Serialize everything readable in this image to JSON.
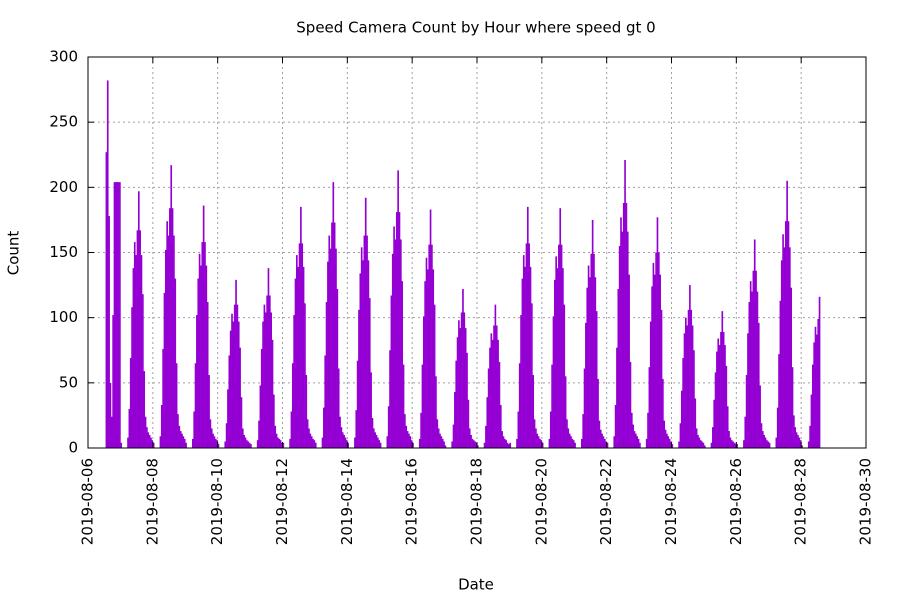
{
  "chart_data": {
    "type": "bar",
    "title": "Speed Camera Count by Hour where speed gt 0",
    "xlabel": "Date",
    "ylabel": "Count",
    "color": "#9400d3",
    "grid": true,
    "xlim": [
      "2019-08-06",
      "2019-08-30"
    ],
    "xticks": [
      "2019-08-06",
      "2019-08-08",
      "2019-08-10",
      "2019-08-12",
      "2019-08-14",
      "2019-08-16",
      "2019-08-18",
      "2019-08-20",
      "2019-08-22",
      "2019-08-24",
      "2019-08-26",
      "2019-08-28",
      "2019-08-30"
    ],
    "ylim": [
      0,
      300
    ],
    "yticks": [
      0,
      50,
      100,
      150,
      200,
      250,
      300
    ],
    "x": [
      "2019-08-06",
      "2019-08-07",
      "2019-08-08",
      "2019-08-09",
      "2019-08-10",
      "2019-08-11",
      "2019-08-12",
      "2019-08-13",
      "2019-08-14",
      "2019-08-15",
      "2019-08-16",
      "2019-08-17",
      "2019-08-18",
      "2019-08-19",
      "2019-08-20",
      "2019-08-21",
      "2019-08-22",
      "2019-08-23",
      "2019-08-24",
      "2019-08-25",
      "2019-08-26",
      "2019-08-27",
      "2019-08-28"
    ],
    "values": [
      [
        null,
        null,
        null,
        null,
        null,
        null,
        null,
        null,
        null,
        null,
        null,
        null,
        null,
        227,
        282,
        178,
        50,
        24,
        102,
        204,
        204,
        204,
        204,
        204
      ],
      [
        4,
        0,
        0,
        0,
        0,
        8,
        30,
        69,
        108,
        138,
        158,
        148,
        167,
        197,
        167,
        148,
        118,
        59,
        24,
        16,
        12,
        10,
        8,
        6
      ],
      [
        4,
        0,
        0,
        0,
        0,
        9,
        33,
        76,
        119,
        152,
        174,
        163,
        184,
        217,
        184,
        163,
        130,
        65,
        26,
        17,
        13,
        11,
        9,
        7
      ],
      [
        4,
        0,
        0,
        0,
        0,
        7,
        28,
        65,
        102,
        130,
        149,
        140,
        158,
        186,
        158,
        140,
        112,
        56,
        22,
        15,
        11,
        9,
        7,
        6
      ],
      [
        3,
        0,
        0,
        0,
        0,
        5,
        19,
        45,
        71,
        90,
        103,
        97,
        110,
        129,
        110,
        97,
        77,
        39,
        15,
        10,
        8,
        6,
        5,
        4
      ],
      [
        3,
        0,
        0,
        0,
        0,
        6,
        21,
        48,
        76,
        97,
        110,
        104,
        117,
        138,
        117,
        104,
        83,
        41,
        17,
        11,
        8,
        7,
        6,
        4
      ],
      [
        4,
        0,
        0,
        0,
        0,
        7,
        28,
        65,
        102,
        130,
        148,
        139,
        157,
        185,
        157,
        139,
        111,
        56,
        22,
        15,
        11,
        9,
        7,
        6
      ],
      [
        4,
        0,
        0,
        0,
        0,
        8,
        31,
        71,
        112,
        143,
        163,
        153,
        173,
        204,
        173,
        153,
        122,
        61,
        24,
        16,
        12,
        10,
        8,
        6
      ],
      [
        4,
        0,
        0,
        0,
        0,
        8,
        29,
        67,
        106,
        134,
        154,
        144,
        163,
        192,
        163,
        144,
        115,
        58,
        23,
        15,
        12,
        10,
        8,
        6
      ],
      [
        4,
        0,
        0,
        0,
        0,
        9,
        32,
        75,
        117,
        149,
        170,
        160,
        181,
        213,
        181,
        160,
        128,
        64,
        26,
        17,
        13,
        11,
        9,
        6
      ],
      [
        4,
        0,
        0,
        0,
        0,
        7,
        27,
        64,
        101,
        128,
        146,
        137,
        156,
        183,
        156,
        137,
        110,
        55,
        22,
        15,
        11,
        9,
        7,
        5
      ],
      [
        2,
        0,
        0,
        0,
        0,
        5,
        18,
        43,
        67,
        85,
        98,
        92,
        104,
        122,
        104,
        92,
        73,
        37,
        15,
        10,
        7,
        6,
        5,
        4
      ],
      [
        2,
        0,
        0,
        0,
        0,
        4,
        17,
        39,
        61,
        77,
        88,
        83,
        94,
        110,
        94,
        83,
        66,
        33,
        13,
        9,
        7,
        6,
        4,
        3
      ],
      [
        4,
        0,
        0,
        0,
        0,
        7,
        28,
        65,
        102,
        130,
        148,
        139,
        157,
        185,
        157,
        139,
        111,
        56,
        22,
        15,
        11,
        9,
        7,
        6
      ],
      [
        4,
        0,
        0,
        0,
        0,
        7,
        28,
        64,
        101,
        129,
        147,
        138,
        156,
        184,
        156,
        138,
        110,
        55,
        22,
        15,
        11,
        9,
        7,
        6
      ],
      [
        4,
        0,
        0,
        0,
        0,
        7,
        26,
        61,
        96,
        123,
        140,
        131,
        149,
        175,
        149,
        131,
        105,
        53,
        21,
        14,
        11,
        9,
        7,
        5
      ],
      [
        4,
        0,
        0,
        0,
        0,
        9,
        33,
        77,
        122,
        155,
        177,
        166,
        188,
        221,
        188,
        166,
        133,
        66,
        27,
        18,
        13,
        11,
        9,
        7
      ],
      [
        4,
        0,
        0,
        0,
        0,
        7,
        27,
        62,
        97,
        124,
        142,
        133,
        150,
        177,
        150,
        133,
        106,
        53,
        21,
        14,
        11,
        9,
        7,
        5
      ],
      [
        3,
        0,
        0,
        0,
        0,
        5,
        19,
        44,
        69,
        88,
        100,
        94,
        106,
        125,
        106,
        94,
        75,
        38,
        15,
        10,
        8,
        6,
        5,
        4
      ],
      [
        2,
        0,
        0,
        0,
        0,
        4,
        16,
        37,
        58,
        74,
        84,
        79,
        89,
        105,
        89,
        79,
        63,
        32,
        13,
        8,
        6,
        5,
        4,
        3
      ],
      [
        3,
        0,
        0,
        0,
        0,
        6,
        24,
        56,
        88,
        112,
        128,
        120,
        136,
        160,
        136,
        120,
        96,
        48,
        19,
        13,
        10,
        8,
        6,
        5
      ],
      [
        4,
        0,
        0,
        0,
        0,
        8,
        31,
        72,
        113,
        144,
        164,
        154,
        174,
        205,
        174,
        154,
        123,
        62,
        25,
        16,
        12,
        10,
        8,
        6
      ],
      [
        2,
        0,
        0,
        0,
        0,
        5,
        17,
        41,
        64,
        81,
        93,
        87,
        99,
        116,
        null,
        null,
        null,
        null,
        null,
        null,
        null,
        null,
        null,
        null
      ]
    ]
  }
}
